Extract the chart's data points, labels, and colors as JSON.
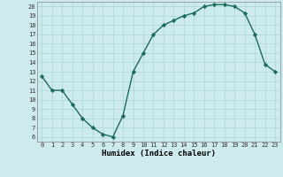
{
  "x": [
    0,
    1,
    2,
    3,
    4,
    5,
    6,
    7,
    8,
    9,
    10,
    11,
    12,
    13,
    14,
    15,
    16,
    17,
    18,
    19,
    20,
    21,
    22,
    23
  ],
  "y": [
    12.5,
    11.0,
    11.0,
    9.5,
    8.0,
    7.0,
    6.3,
    6.0,
    8.3,
    13.0,
    15.0,
    17.0,
    18.0,
    18.5,
    19.0,
    19.3,
    20.0,
    20.2,
    20.2,
    20.0,
    19.3,
    17.0,
    13.8,
    13.0
  ],
  "line_color": "#1a6b5a",
  "marker": "D",
  "markersize": 2.2,
  "bg_color": "#cdeaed",
  "grid_color": "#b0d8dc",
  "xlabel": "Humidex (Indice chaleur)",
  "xlim": [
    -0.5,
    23.5
  ],
  "ylim": [
    5.5,
    20.5
  ],
  "yticks": [
    6,
    7,
    8,
    9,
    10,
    11,
    12,
    13,
    14,
    15,
    16,
    17,
    18,
    19,
    20
  ],
  "xticks": [
    0,
    1,
    2,
    3,
    4,
    5,
    6,
    7,
    8,
    9,
    10,
    11,
    12,
    13,
    14,
    15,
    16,
    17,
    18,
    19,
    20,
    21,
    22,
    23
  ],
  "tick_fontsize": 5.0,
  "xlabel_fontsize": 6.5,
  "linewidth": 1.0
}
